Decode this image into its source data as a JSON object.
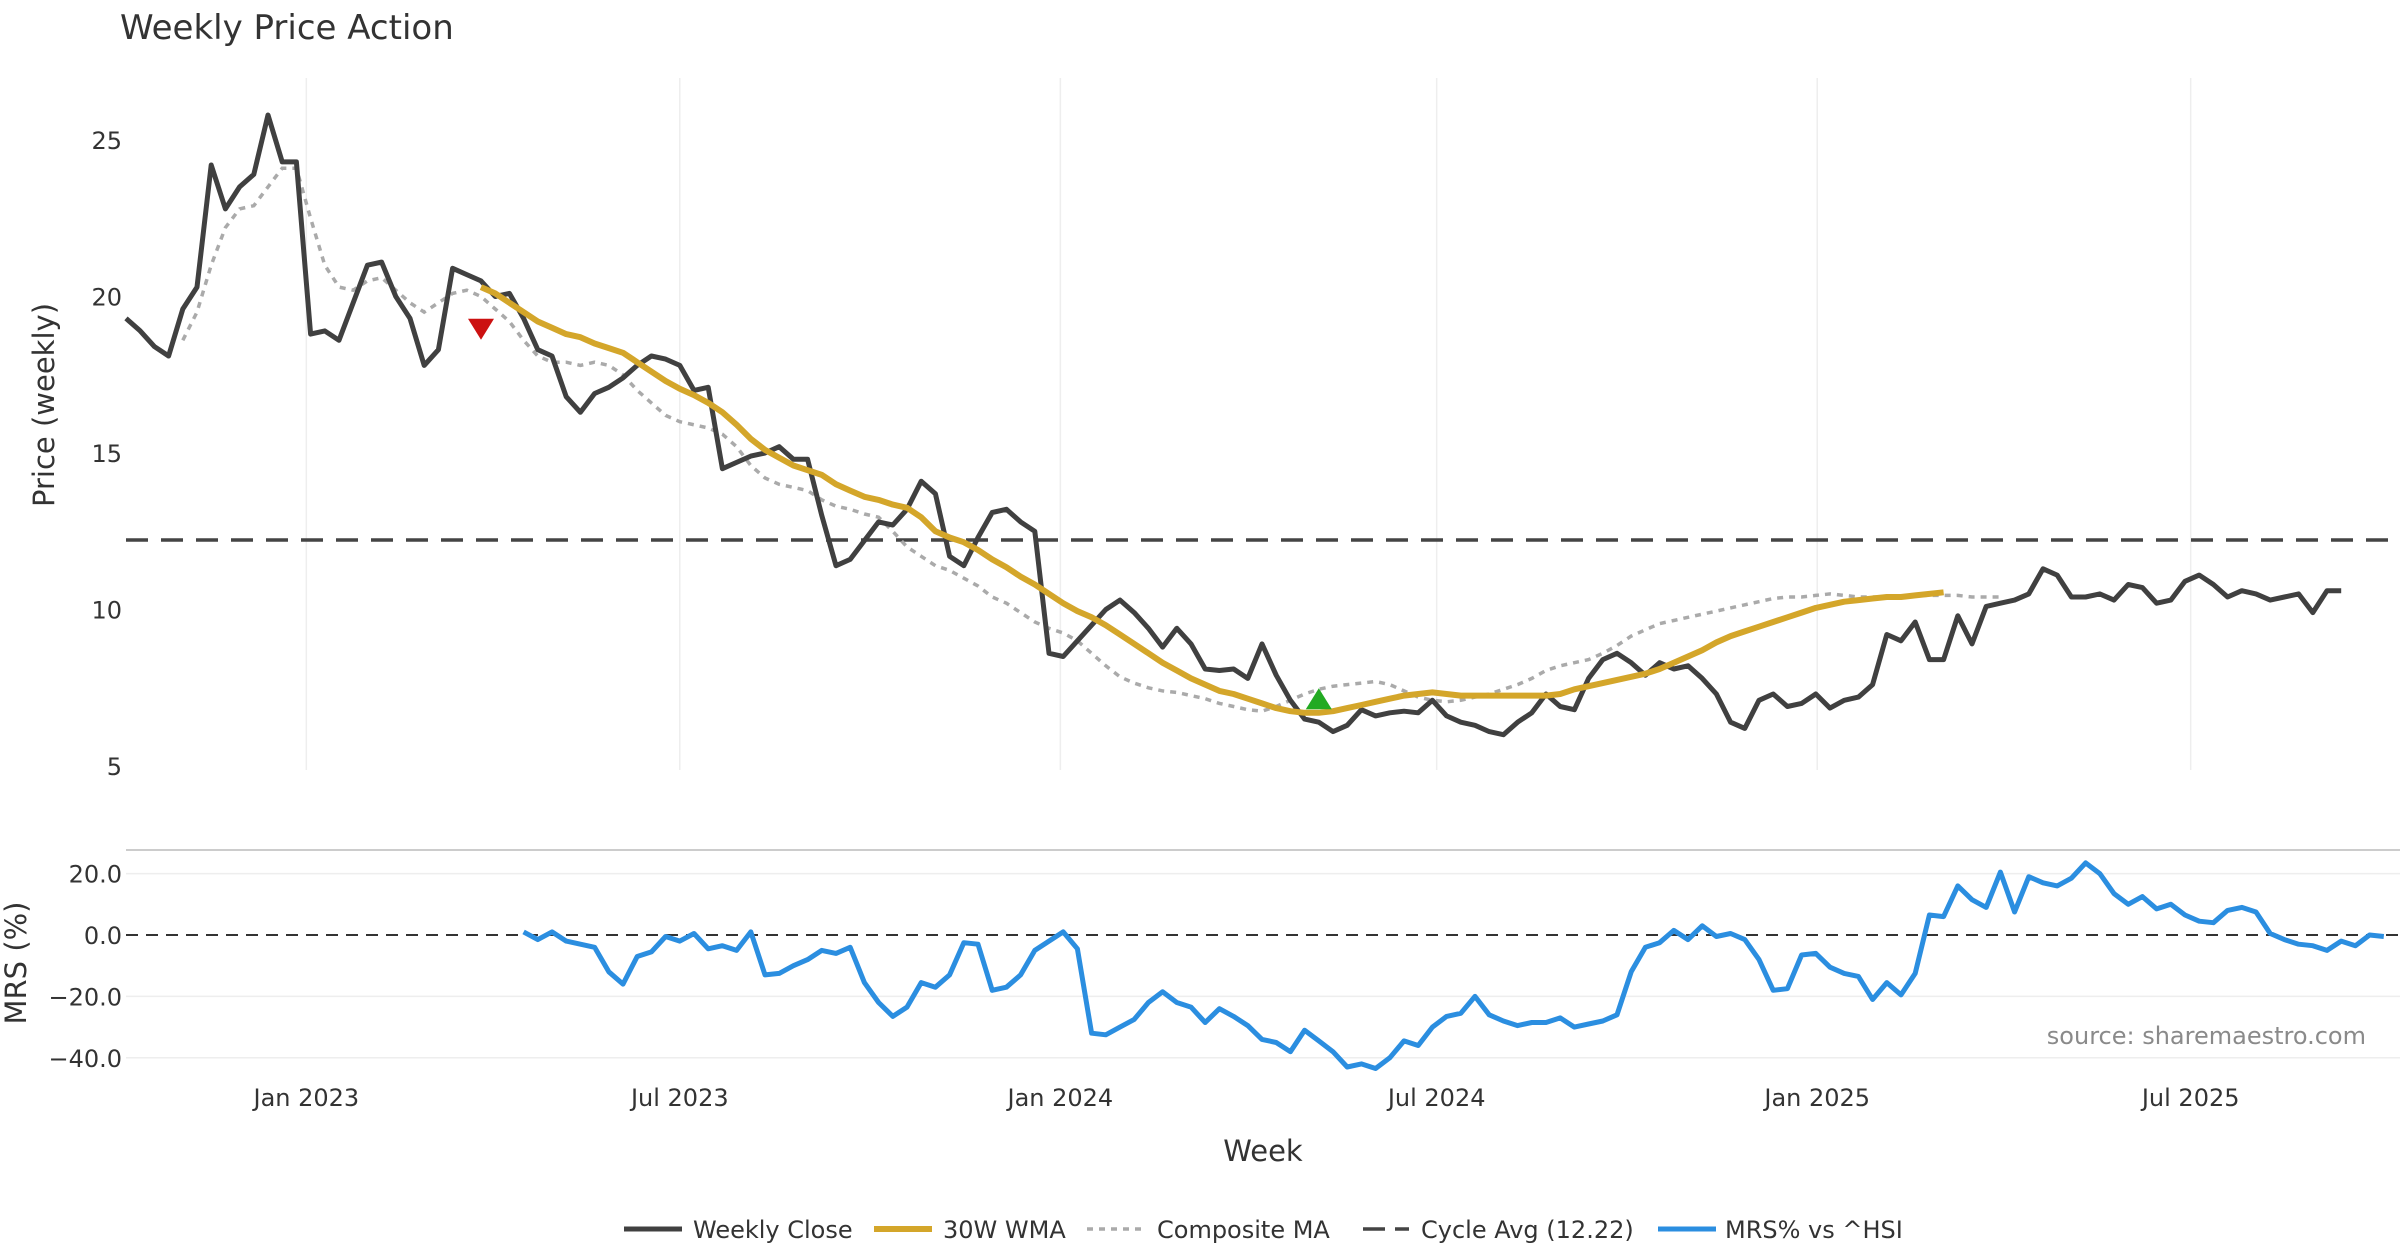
{
  "chart_data": {
    "type": "line",
    "title": "Weekly Price Action",
    "source": "source: sharemaestro.com",
    "xlabel": "Week",
    "x_ticks": [
      "Jan 2023",
      "Jul 2023",
      "Jan 2024",
      "Jul 2024",
      "Jan 2025",
      "Jul 2025"
    ],
    "price_panel": {
      "ylabel": "Price (weekly)",
      "ylim": [
        4.5,
        27.5
      ],
      "yticks": [
        "5",
        "10",
        "15",
        "20",
        "25"
      ],
      "yvalues": [
        5,
        10,
        15,
        20,
        25
      ],
      "cycle_avg": 12.22
    },
    "mrs_panel": {
      "ylabel": "MRS (%)",
      "ylim": [
        -43,
        27
      ],
      "yticks": [
        "20.0",
        "0.0",
        "−20.0",
        "−40.0"
      ],
      "yvalues": [
        20,
        0,
        -20,
        -40
      ]
    },
    "legend": {
      "weekly_close": "Weekly Close",
      "wma": "30W WMA",
      "composite": "Composite MA",
      "cycle_avg": "Cycle Avg (12.22)",
      "mrs": "MRS% vs ^HSI"
    },
    "colors": {
      "weekly_close": "#404040",
      "wma": "#d4a62a",
      "composite": "#aaaaaa",
      "cycle_avg": "#444444",
      "mrs": "#2b8ee0",
      "sell_marker": "#cc1111",
      "buy_marker": "#22aa22"
    },
    "markers": [
      {
        "type": "sell",
        "week": 25,
        "price": 19.0
      },
      {
        "type": "buy",
        "week": 84,
        "price": 7.1
      }
    ],
    "series": [
      {
        "name": "Weekly Close",
        "start_week": 0,
        "values": [
          19.3,
          18.9,
          18.4,
          18.1,
          19.6,
          20.3,
          24.2,
          22.8,
          23.5,
          23.9,
          25.8,
          24.3,
          24.3,
          18.8,
          18.9,
          18.6,
          19.8,
          21.0,
          21.1,
          20.0,
          19.3,
          17.8,
          18.3,
          20.9,
          20.7,
          20.5,
          20.0,
          20.1,
          19.3,
          18.3,
          18.1,
          16.8,
          16.3,
          16.9,
          17.1,
          17.4,
          17.8,
          18.1,
          18.0,
          17.8,
          17.0,
          17.1,
          14.5,
          14.7,
          14.9,
          15.0,
          15.2,
          14.8,
          14.8,
          13.0,
          11.4,
          11.6,
          12.2,
          12.8,
          12.7,
          13.2,
          14.1,
          13.7,
          11.7,
          11.4,
          12.3,
          13.1,
          13.2,
          12.8,
          12.5,
          8.6,
          8.5,
          9.0,
          9.5,
          10.0,
          10.3,
          9.9,
          9.4,
          8.8,
          9.4,
          8.9,
          8.1,
          8.05,
          8.1,
          7.8,
          8.9,
          7.9,
          7.1,
          6.5,
          6.4,
          6.1,
          6.3,
          6.8,
          6.6,
          6.7,
          6.75,
          6.7,
          7.1,
          6.6,
          6.4,
          6.3,
          6.1,
          6.0,
          6.4,
          6.7,
          7.3,
          6.9,
          6.8,
          7.8,
          8.4,
          8.6,
          8.3,
          7.9,
          8.3,
          8.1,
          8.2,
          7.8,
          7.3,
          6.4,
          6.2,
          7.1,
          7.3,
          6.9,
          7.0,
          7.3,
          6.85,
          7.1,
          7.2,
          7.6,
          9.2,
          9.0,
          9.6,
          8.4,
          8.4,
          9.8,
          8.9,
          10.1,
          10.2,
          10.3,
          10.5,
          11.3,
          11.1,
          10.4,
          10.4,
          10.5,
          10.3,
          10.8,
          10.7,
          10.2,
          10.3,
          10.9,
          11.1,
          10.8,
          10.4,
          10.6,
          10.5,
          10.3,
          10.4,
          10.5,
          9.9,
          10.6,
          10.6
        ]
      },
      {
        "name": "30W WMA",
        "start_week": 25,
        "values": [
          20.3,
          20.1,
          19.8,
          19.5,
          19.2,
          19.0,
          18.8,
          18.7,
          18.5,
          18.35,
          18.2,
          17.9,
          17.6,
          17.3,
          17.05,
          16.85,
          16.6,
          16.3,
          15.9,
          15.45,
          15.1,
          14.85,
          14.6,
          14.45,
          14.3,
          14.0,
          13.8,
          13.6,
          13.5,
          13.35,
          13.25,
          12.95,
          12.5,
          12.3,
          12.15,
          11.9,
          11.6,
          11.35,
          11.05,
          10.8,
          10.5,
          10.2,
          9.95,
          9.75,
          9.5,
          9.2,
          8.9,
          8.6,
          8.3,
          8.05,
          7.8,
          7.6,
          7.4,
          7.3,
          7.15,
          7.0,
          6.85,
          6.75,
          6.7,
          6.7,
          6.75,
          6.85,
          6.95,
          7.05,
          7.15,
          7.25,
          7.3,
          7.35,
          7.3,
          7.25,
          7.25,
          7.25,
          7.25,
          7.25,
          7.25,
          7.25,
          7.3,
          7.45,
          7.55,
          7.65,
          7.75,
          7.85,
          7.95,
          8.1,
          8.3,
          8.5,
          8.7,
          8.95,
          9.15,
          9.3,
          9.45,
          9.6,
          9.75,
          9.9,
          10.05,
          10.15,
          10.25,
          10.3,
          10.35,
          10.4,
          10.4,
          10.45,
          10.5,
          10.55
        ]
      },
      {
        "name": "Composite MA",
        "start_week": 4,
        "values": [
          18.6,
          19.5,
          21.0,
          22.2,
          22.8,
          22.9,
          23.5,
          24.1,
          24.1,
          22.5,
          21.0,
          20.3,
          20.2,
          20.5,
          20.6,
          20.2,
          19.8,
          19.5,
          19.8,
          20.1,
          20.2,
          20.0,
          19.6,
          19.2,
          18.6,
          18.1,
          17.9,
          17.9,
          17.8,
          17.9,
          17.8,
          17.5,
          17.0,
          16.6,
          16.2,
          16.0,
          15.9,
          15.8,
          15.6,
          15.2,
          14.6,
          14.2,
          14.0,
          13.9,
          13.8,
          13.5,
          13.3,
          13.2,
          13.05,
          12.95,
          12.5,
          12.0,
          11.7,
          11.4,
          11.25,
          11.0,
          10.75,
          10.4,
          10.2,
          9.9,
          9.6,
          9.4,
          9.25,
          9.0,
          8.6,
          8.2,
          7.85,
          7.65,
          7.5,
          7.4,
          7.35,
          7.25,
          7.15,
          7.0,
          6.9,
          6.8,
          6.75,
          6.9,
          7.1,
          7.3,
          7.45,
          7.55,
          7.6,
          7.65,
          7.7,
          7.6,
          7.4,
          7.2,
          7.1,
          7.05,
          7.1,
          7.2,
          7.3,
          7.45,
          7.6,
          7.8,
          8.05,
          8.2,
          8.3,
          8.4,
          8.6,
          8.85,
          9.15,
          9.35,
          9.55,
          9.65,
          9.75,
          9.85,
          9.95,
          10.05,
          10.15,
          10.25,
          10.35,
          10.4,
          10.4,
          10.45,
          10.5,
          10.45,
          10.4,
          10.4,
          10.4,
          10.4,
          10.45,
          10.45,
          10.45,
          10.45,
          10.4,
          10.4,
          10.4
        ]
      },
      {
        "name": "MRS% vs ^HSI",
        "start_week": 28,
        "values": [
          1.0,
          -1.5,
          1.0,
          -2.0,
          -3.0,
          -4.0,
          -12.0,
          -16.0,
          -7.0,
          -5.5,
          -0.5,
          -2.0,
          0.5,
          -4.5,
          -3.5,
          -5.0,
          1.0,
          -13.0,
          -12.5,
          -10.0,
          -8.0,
          -5.0,
          -6.0,
          -4.0,
          -15.5,
          -22.0,
          -26.5,
          -23.5,
          -15.5,
          -17.0,
          -13.0,
          -2.5,
          -3.0,
          -18.0,
          -17.0,
          -13.0,
          -5.0,
          -2.0,
          1.0,
          -4.5,
          -32.0,
          -32.5,
          -30.0,
          -27.5,
          -22.0,
          -18.5,
          -22.0,
          -23.5,
          -28.5,
          -24.0,
          -26.5,
          -29.5,
          -34.0,
          -35.0,
          -38.0,
          -31.0,
          -34.5,
          -38.0,
          -43.0,
          -42.0,
          -43.5,
          -40.0,
          -34.5,
          -36.0,
          -30.0,
          -26.5,
          -25.5,
          -20.0,
          -26.0,
          -28.0,
          -29.5,
          -28.5,
          -28.5,
          -27.0,
          -30.0,
          -29.0,
          -28.0,
          -26.0,
          -12.0,
          -4.0,
          -2.5,
          1.5,
          -1.5,
          3.0,
          -0.5,
          0.5,
          -1.5,
          -8.0,
          -18.0,
          -17.5,
          -6.5,
          -6.0,
          -10.5,
          -12.5,
          -13.5,
          -21.0,
          -15.5,
          -19.5,
          -12.5,
          6.5,
          6.0,
          16.0,
          11.5,
          9.0,
          20.5,
          7.5,
          19.0,
          17.0,
          16.0,
          18.5,
          23.5,
          20.0,
          13.5,
          10.0,
          12.5,
          8.5,
          10.0,
          6.5,
          4.5,
          4.0,
          8.0,
          9.0,
          7.5,
          0.5,
          -1.5,
          -3.0,
          -3.5,
          -5.0,
          -2.0,
          -3.5,
          0.0,
          -0.5
        ]
      }
    ]
  }
}
